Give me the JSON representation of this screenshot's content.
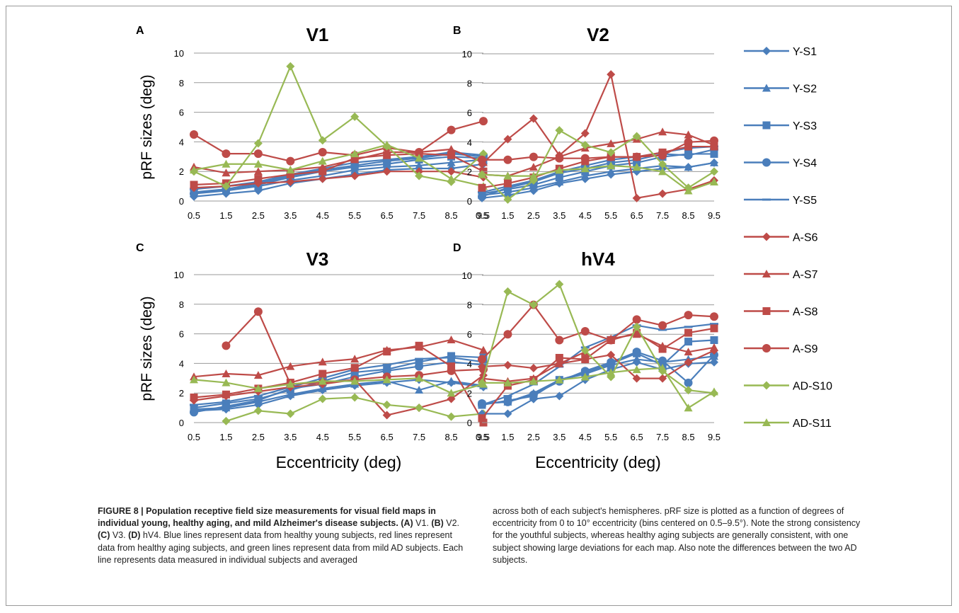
{
  "figure": {
    "caption": {
      "label": "FIGURE 8 | ",
      "title": "Population receptive field size measurements for visual field maps in individual young, healthy aging, and mild Alzheimer's disease subjects.",
      "col1_rest_1": " V1. ",
      "col1_rest_2": " V2. ",
      "col1_rest_3": " V3. ",
      "col1_rest_4": " hV4. Blue lines represent data from healthy young subjects, red lines represent data from healthy aging subjects, and green lines represent data from mild AD subjects. Each line represents data measured in individual subjects and averaged",
      "panel_a": "(A)",
      "panel_b": "(B)",
      "panel_c": "(C)",
      "panel_d": "(D)",
      "col2": "across both of each subject's hemispheres. pRF size is plotted as a function of degrees of eccentricity from 0 to 10° eccentricity (bins centered on 0.5–9.5°). Note the strong consistency for the youthful subjects, whereas healthy aging subjects are generally consistent, with one subject showing large deviations for each map. Also note the differences between the two AD subjects."
    },
    "ylabel": "pRF sizes (deg)",
    "xlabel": "Eccentricity (deg)",
    "colors": {
      "blue": "#4a7ebb",
      "red": "#be4b48",
      "green": "#98b954"
    }
  },
  "chart_data": [
    {
      "type": "line",
      "panel": "A",
      "title": "V1",
      "x": [
        0.5,
        1.5,
        2.5,
        3.5,
        4.5,
        5.5,
        6.5,
        7.5,
        8.5,
        9.5
      ],
      "ylim": [
        0,
        10
      ],
      "yticks": [
        0,
        2,
        4,
        6,
        8,
        10
      ],
      "series": [
        {
          "name": "Y-S1",
          "marker": "diamond",
          "color": "#4a7ebb",
          "values": [
            0.3,
            0.5,
            0.7,
            1.2,
            1.5,
            1.8,
            2.1,
            2.2,
            2.2,
            2.5
          ]
        },
        {
          "name": "Y-S2",
          "marker": "triangle",
          "color": "#4a7ebb",
          "values": [
            0.5,
            0.7,
            1.0,
            1.4,
            1.7,
            2.1,
            2.3,
            2.4,
            2.6,
            2.8
          ]
        },
        {
          "name": "Y-S3",
          "marker": "square",
          "color": "#4a7ebb",
          "values": [
            0.6,
            0.8,
            1.1,
            1.6,
            2.0,
            2.3,
            2.5,
            2.8,
            3.0,
            2.9
          ]
        },
        {
          "name": "Y-S4",
          "marker": "circle",
          "color": "#4a7ebb",
          "values": [
            0.5,
            0.8,
            1.2,
            1.7,
            2.1,
            2.4,
            2.7,
            2.9,
            3.2,
            3.0
          ]
        },
        {
          "name": "Y-S5",
          "marker": "dash",
          "color": "#4a7ebb",
          "values": [
            0.8,
            1.0,
            1.3,
            1.8,
            2.2,
            2.6,
            2.8,
            3.0,
            3.3,
            3.1
          ]
        },
        {
          "name": "A-S6",
          "marker": "diamond",
          "color": "#be4b48",
          "values": [
            0.9,
            1.0,
            1.2,
            1.3,
            1.5,
            1.7,
            2.0,
            2.0,
            2.0,
            1.6
          ]
        },
        {
          "name": "A-S7",
          "marker": "triangle",
          "color": "#be4b48",
          "values": [
            2.3,
            1.9,
            2.0,
            2.1,
            2.3,
            2.8,
            3.3,
            3.3,
            3.5,
            2.6
          ]
        },
        {
          "name": "A-S8",
          "marker": "square",
          "color": "#be4b48",
          "values": [
            1.1,
            1.2,
            1.5,
            1.8,
            2.0,
            2.9,
            3.1,
            3.2,
            3.1,
            2.0
          ]
        },
        {
          "name": "A-S9",
          "marker": "circle",
          "color": "#be4b48",
          "values": [
            4.5,
            3.2,
            3.2,
            2.7,
            3.3,
            3.1,
            3.6,
            3.3,
            4.8,
            5.4
          ]
        },
        {
          "name": "AD-S10",
          "marker": "diamond",
          "color": "#98b954",
          "values": [
            2.0,
            1.0,
            3.9,
            9.1,
            4.1,
            5.7,
            3.7,
            1.7,
            1.3,
            3.2
          ]
        },
        {
          "name": "AD-S11",
          "marker": "triangle",
          "color": "#98b954",
          "values": [
            2.1,
            2.5,
            2.5,
            2.1,
            2.7,
            3.2,
            3.8,
            2.9,
            1.5,
            1.0
          ]
        }
      ]
    },
    {
      "type": "line",
      "panel": "B",
      "title": "V2",
      "x": [
        0.5,
        1.5,
        2.5,
        3.5,
        4.5,
        5.5,
        6.5,
        7.5,
        8.5,
        9.5
      ],
      "ylim": [
        0,
        10
      ],
      "yticks": [
        0,
        2,
        4,
        6,
        8,
        10
      ],
      "series": [
        {
          "name": "Y-S1",
          "marker": "diamond",
          "color": "#4a7ebb",
          "values": [
            0.2,
            0.4,
            0.7,
            1.2,
            1.5,
            1.8,
            2.0,
            2.2,
            2.3,
            2.6
          ]
        },
        {
          "name": "Y-S2",
          "marker": "triangle",
          "color": "#4a7ebb",
          "values": [
            0.4,
            0.6,
            0.9,
            1.3,
            1.7,
            2.0,
            2.2,
            2.4,
            2.3,
            2.6
          ]
        },
        {
          "name": "Y-S3",
          "marker": "square",
          "color": "#4a7ebb",
          "values": [
            0.5,
            0.8,
            1.1,
            1.6,
            2.0,
            2.4,
            2.6,
            3.0,
            3.2,
            3.2
          ]
        },
        {
          "name": "Y-S4",
          "marker": "circle",
          "color": "#4a7ebb",
          "values": [
            0.3,
            0.9,
            1.3,
            1.9,
            2.2,
            2.6,
            2.8,
            3.2,
            3.1,
            3.5
          ]
        },
        {
          "name": "Y-S5",
          "marker": "dash",
          "color": "#4a7ebb",
          "values": [
            0.6,
            1.0,
            1.4,
            2.0,
            2.4,
            2.8,
            3.0,
            3.3,
            3.6,
            3.7
          ]
        },
        {
          "name": "A-S6",
          "marker": "diamond",
          "color": "#be4b48",
          "values": [
            2.5,
            4.2,
            5.6,
            3.1,
            4.6,
            8.6,
            0.2,
            0.5,
            0.8,
            1.4
          ]
        },
        {
          "name": "A-S7",
          "marker": "triangle",
          "color": "#be4b48",
          "values": [
            1.8,
            1.7,
            2.3,
            3.0,
            3.6,
            3.9,
            4.2,
            4.7,
            4.5,
            3.8
          ]
        },
        {
          "name": "A-S8",
          "marker": "square",
          "color": "#be4b48",
          "values": [
            0.9,
            1.2,
            1.6,
            2.2,
            2.7,
            3.0,
            3.0,
            3.3,
            3.7,
            3.7
          ]
        },
        {
          "name": "A-S9",
          "marker": "circle",
          "color": "#be4b48",
          "values": [
            2.8,
            2.8,
            3.0,
            2.9,
            2.9,
            3.0,
            3.0,
            3.1,
            4.0,
            4.1
          ]
        },
        {
          "name": "AD-S10",
          "marker": "diamond",
          "color": "#98b954",
          "values": [
            1.8,
            0.1,
            1.4,
            4.8,
            3.8,
            3.3,
            4.4,
            2.5,
            0.9,
            2.0
          ]
        },
        {
          "name": "AD-S11",
          "marker": "triangle",
          "color": "#98b954",
          "values": [
            1.8,
            1.7,
            1.7,
            2.1,
            2.2,
            2.4,
            2.3,
            2.0,
            0.7,
            1.3
          ]
        }
      ]
    },
    {
      "type": "line",
      "panel": "C",
      "title": "V3",
      "x": [
        0.5,
        1.5,
        2.5,
        3.5,
        4.5,
        5.5,
        6.5,
        7.5,
        8.5,
        9.5
      ],
      "ylim": [
        0,
        10
      ],
      "yticks": [
        0,
        2,
        4,
        6,
        8,
        10
      ],
      "series": [
        {
          "name": "Y-S1",
          "marker": "diamond",
          "color": "#4a7ebb",
          "values": [
            0.8,
            0.9,
            1.2,
            1.8,
            2.2,
            2.5,
            2.7,
            2.9,
            2.7,
            2.4
          ]
        },
        {
          "name": "Y-S2",
          "marker": "triangle",
          "color": "#4a7ebb",
          "values": [
            0.9,
            1.0,
            1.4,
            1.9,
            2.3,
            2.6,
            2.8,
            2.2,
            2.8,
            2.5
          ]
        },
        {
          "name": "Y-S3",
          "marker": "square",
          "color": "#4a7ebb",
          "values": [
            1.0,
            1.3,
            1.6,
            2.2,
            2.8,
            3.4,
            3.6,
            4.1,
            4.5,
            4.4
          ]
        },
        {
          "name": "Y-S4",
          "marker": "circle",
          "color": "#4a7ebb",
          "values": [
            0.7,
            1.1,
            1.5,
            2.3,
            2.6,
            3.1,
            3.5,
            3.8,
            4.1,
            3.9
          ]
        },
        {
          "name": "Y-S5",
          "marker": "dash",
          "color": "#4a7ebb",
          "values": [
            1.2,
            1.4,
            1.8,
            2.4,
            3.0,
            3.6,
            3.9,
            4.3,
            4.4,
            4.1
          ]
        },
        {
          "name": "A-S6",
          "marker": "diamond",
          "color": "#be4b48",
          "values": [
            1.5,
            1.8,
            2.1,
            2.4,
            2.6,
            2.9,
            0.5,
            1.0,
            1.6,
            3.2
          ]
        },
        {
          "name": "A-S7",
          "marker": "triangle",
          "color": "#be4b48",
          "values": [
            3.1,
            3.3,
            3.2,
            3.8,
            4.1,
            4.3,
            4.9,
            5.1,
            5.6,
            4.9
          ]
        },
        {
          "name": "A-S8",
          "marker": "square",
          "color": "#be4b48",
          "values": [
            1.7,
            1.9,
            2.3,
            2.7,
            3.3,
            3.7,
            4.8,
            5.2,
            3.8,
            0.0
          ]
        },
        {
          "name": "A-S9",
          "marker": "circle",
          "color": "#be4b48",
          "values": [
            null,
            5.2,
            7.5,
            2.6,
            2.7,
            2.9,
            3.1,
            3.2,
            3.5,
            3.6
          ]
        },
        {
          "name": "AD-S10",
          "marker": "diamond",
          "color": "#98b954",
          "values": [
            null,
            0.1,
            0.8,
            0.6,
            1.6,
            1.7,
            1.2,
            1.0,
            0.4,
            0.6
          ]
        },
        {
          "name": "AD-S11",
          "marker": "triangle",
          "color": "#98b954",
          "values": [
            2.9,
            2.7,
            2.3,
            2.6,
            2.8,
            2.8,
            2.9,
            3.0,
            2.0,
            2.6
          ]
        }
      ]
    },
    {
      "type": "line",
      "panel": "D",
      "title": "hV4",
      "x": [
        0.5,
        1.5,
        2.5,
        3.5,
        4.5,
        5.5,
        6.5,
        7.5,
        8.5,
        9.5
      ],
      "ylim": [
        0,
        10
      ],
      "yticks": [
        0,
        2,
        4,
        6,
        8,
        10
      ],
      "series": [
        {
          "name": "Y-S1",
          "marker": "diamond",
          "color": "#4a7ebb",
          "values": [
            0.6,
            0.6,
            1.6,
            1.8,
            2.9,
            3.6,
            4.1,
            3.6,
            4.0,
            4.1
          ]
        },
        {
          "name": "Y-S2",
          "marker": "triangle",
          "color": "#4a7ebb",
          "values": [
            1.3,
            1.4,
            2.0,
            2.9,
            3.3,
            3.9,
            4.3,
            4.1,
            4.3,
            4.5
          ]
        },
        {
          "name": "Y-S3",
          "marker": "square",
          "color": "#4a7ebb",
          "values": [
            1.2,
            1.5,
            1.8,
            2.9,
            3.4,
            4.0,
            4.7,
            3.9,
            5.5,
            5.6
          ]
        },
        {
          "name": "Y-S4",
          "marker": "circle",
          "color": "#4a7ebb",
          "values": [
            1.3,
            1.4,
            1.9,
            2.8,
            3.5,
            4.1,
            4.8,
            4.2,
            2.7,
            4.6
          ]
        },
        {
          "name": "Y-S5",
          "marker": "dash",
          "color": "#4a7ebb",
          "values": [
            1.2,
            1.8,
            2.6,
            3.8,
            5.1,
            5.8,
            6.6,
            6.3,
            6.5,
            6.7
          ]
        },
        {
          "name": "A-S6",
          "marker": "diamond",
          "color": "#be4b48",
          "values": [
            3.8,
            3.9,
            3.7,
            4.0,
            4.3,
            4.6,
            3.0,
            3.0,
            4.1,
            4.9
          ]
        },
        {
          "name": "A-S7",
          "marker": "triangle",
          "color": "#be4b48",
          "values": [
            3.0,
            2.8,
            3.0,
            4.0,
            4.8,
            5.7,
            6.0,
            5.2,
            4.8,
            5.1
          ]
        },
        {
          "name": "A-S8",
          "marker": "square",
          "color": "#be4b48",
          "values": [
            0.3,
            2.5,
            2.9,
            4.4,
            4.3,
            5.6,
            6.1,
            5.0,
            6.1,
            6.4
          ]
        },
        {
          "name": "A-S9",
          "marker": "circle",
          "color": "#be4b48",
          "values": [
            4.3,
            6.0,
            8.0,
            5.6,
            6.2,
            5.6,
            7.0,
            6.6,
            7.3,
            7.2
          ]
        },
        {
          "name": "AD-S10",
          "marker": "diamond",
          "color": "#98b954",
          "values": [
            2.7,
            8.9,
            8.0,
            9.4,
            4.9,
            3.1,
            6.5,
            3.5,
            2.2,
            2.0
          ]
        },
        {
          "name": "AD-S11",
          "marker": "triangle",
          "color": "#98b954",
          "values": [
            2.7,
            2.7,
            2.8,
            2.9,
            3.1,
            3.4,
            3.6,
            3.7,
            1.0,
            2.1
          ]
        }
      ]
    }
  ]
}
